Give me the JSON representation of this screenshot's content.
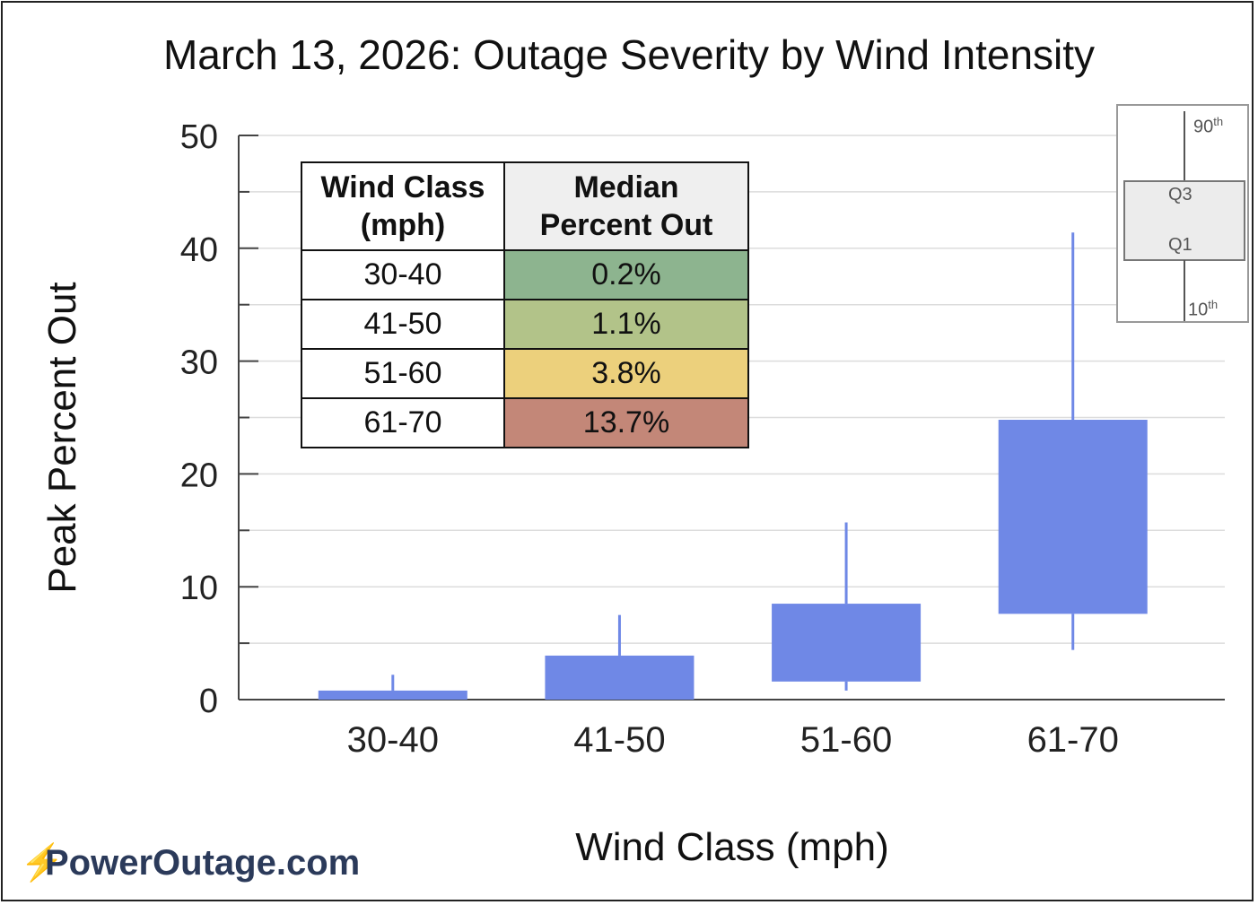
{
  "chart_data": {
    "type": "box",
    "title": "March 13, 2026: Outage Severity by Wind Intensity",
    "xlabel": "Wind Class (mph)",
    "ylabel": "Peak Percent Out",
    "ylim": [
      0,
      50
    ],
    "yticks": [
      "0",
      "10",
      "20",
      "30",
      "40",
      "50"
    ],
    "categories": [
      "30-40",
      "41-50",
      "51-60",
      "61-70"
    ],
    "boxes": [
      {
        "category": "30-40",
        "p10": 0.0,
        "q1": 0.0,
        "q3": 0.8,
        "p90": 2.2
      },
      {
        "category": "41-50",
        "p10": 0.0,
        "q1": 0.0,
        "q3": 3.9,
        "p90": 7.5
      },
      {
        "category": "51-60",
        "p10": 0.8,
        "q1": 1.6,
        "q3": 8.5,
        "p90": 15.7
      },
      {
        "category": "61-70",
        "p10": 4.4,
        "q1": 7.6,
        "q3": 24.8,
        "p90": 41.4
      }
    ],
    "box_color": "#6f88e6",
    "grid": "horizontal",
    "table": {
      "headers": [
        "Wind Class\n(mph)",
        "Median\nPercent Out"
      ],
      "rows": [
        {
          "wind_class": "30-40",
          "median": "0.2%",
          "color": "#8db48f"
        },
        {
          "wind_class": "41-50",
          "median": "1.1%",
          "color": "#b2c389"
        },
        {
          "wind_class": "51-60",
          "median": "3.8%",
          "color": "#ecd07c"
        },
        {
          "wind_class": "61-70",
          "median": "13.7%",
          "color": "#c38778"
        }
      ]
    },
    "legend_key": {
      "top": "90",
      "top_suffix": "th",
      "upper_box": "Q3",
      "lower_box": "Q1",
      "bottom": "10",
      "bottom_suffix": "th",
      "placement": "top-right"
    }
  },
  "brand": {
    "name": "PowerOutage.com",
    "icon": "lightning-bolt-icon"
  }
}
